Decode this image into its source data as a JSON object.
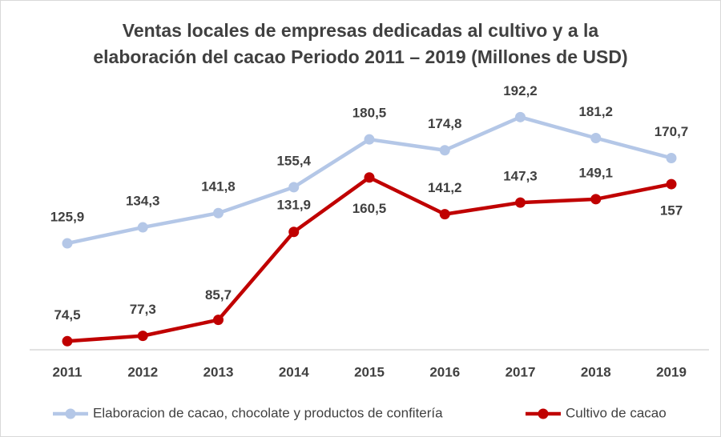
{
  "chart_data": {
    "type": "line",
    "title": "Ventas locales de empresas dedicadas al cultivo y a la\nelaboración del cacao Periodo 2011 – 2019 (Millones de USD)",
    "categories": [
      "2011",
      "2012",
      "2013",
      "2014",
      "2015",
      "2016",
      "2017",
      "2018",
      "2019"
    ],
    "series": [
      {
        "name": "Elaboracion de cacao, chocolate y productos de confitería",
        "color": "#b4c7e7",
        "values": [
          125.9,
          134.3,
          141.8,
          155.4,
          180.5,
          174.8,
          192.2,
          181.2,
          170.7
        ],
        "value_labels": [
          "125,9",
          "134,3",
          "141,8",
          "155,4",
          "180,5",
          "174,8",
          "192,2",
          "181,2",
          "170,7"
        ]
      },
      {
        "name": "Cultivo de cacao",
        "color": "#c00000",
        "values": [
          74.5,
          77.3,
          85.7,
          131.9,
          160.5,
          141.2,
          147.3,
          149.1,
          157
        ],
        "value_labels": [
          "74,5",
          "77,3",
          "85,7",
          "131,9",
          "160,5",
          "141,2",
          "147,3",
          "149,1",
          "157"
        ]
      }
    ],
    "ylim": [
      70,
      210
    ],
    "legend": "bottom"
  }
}
